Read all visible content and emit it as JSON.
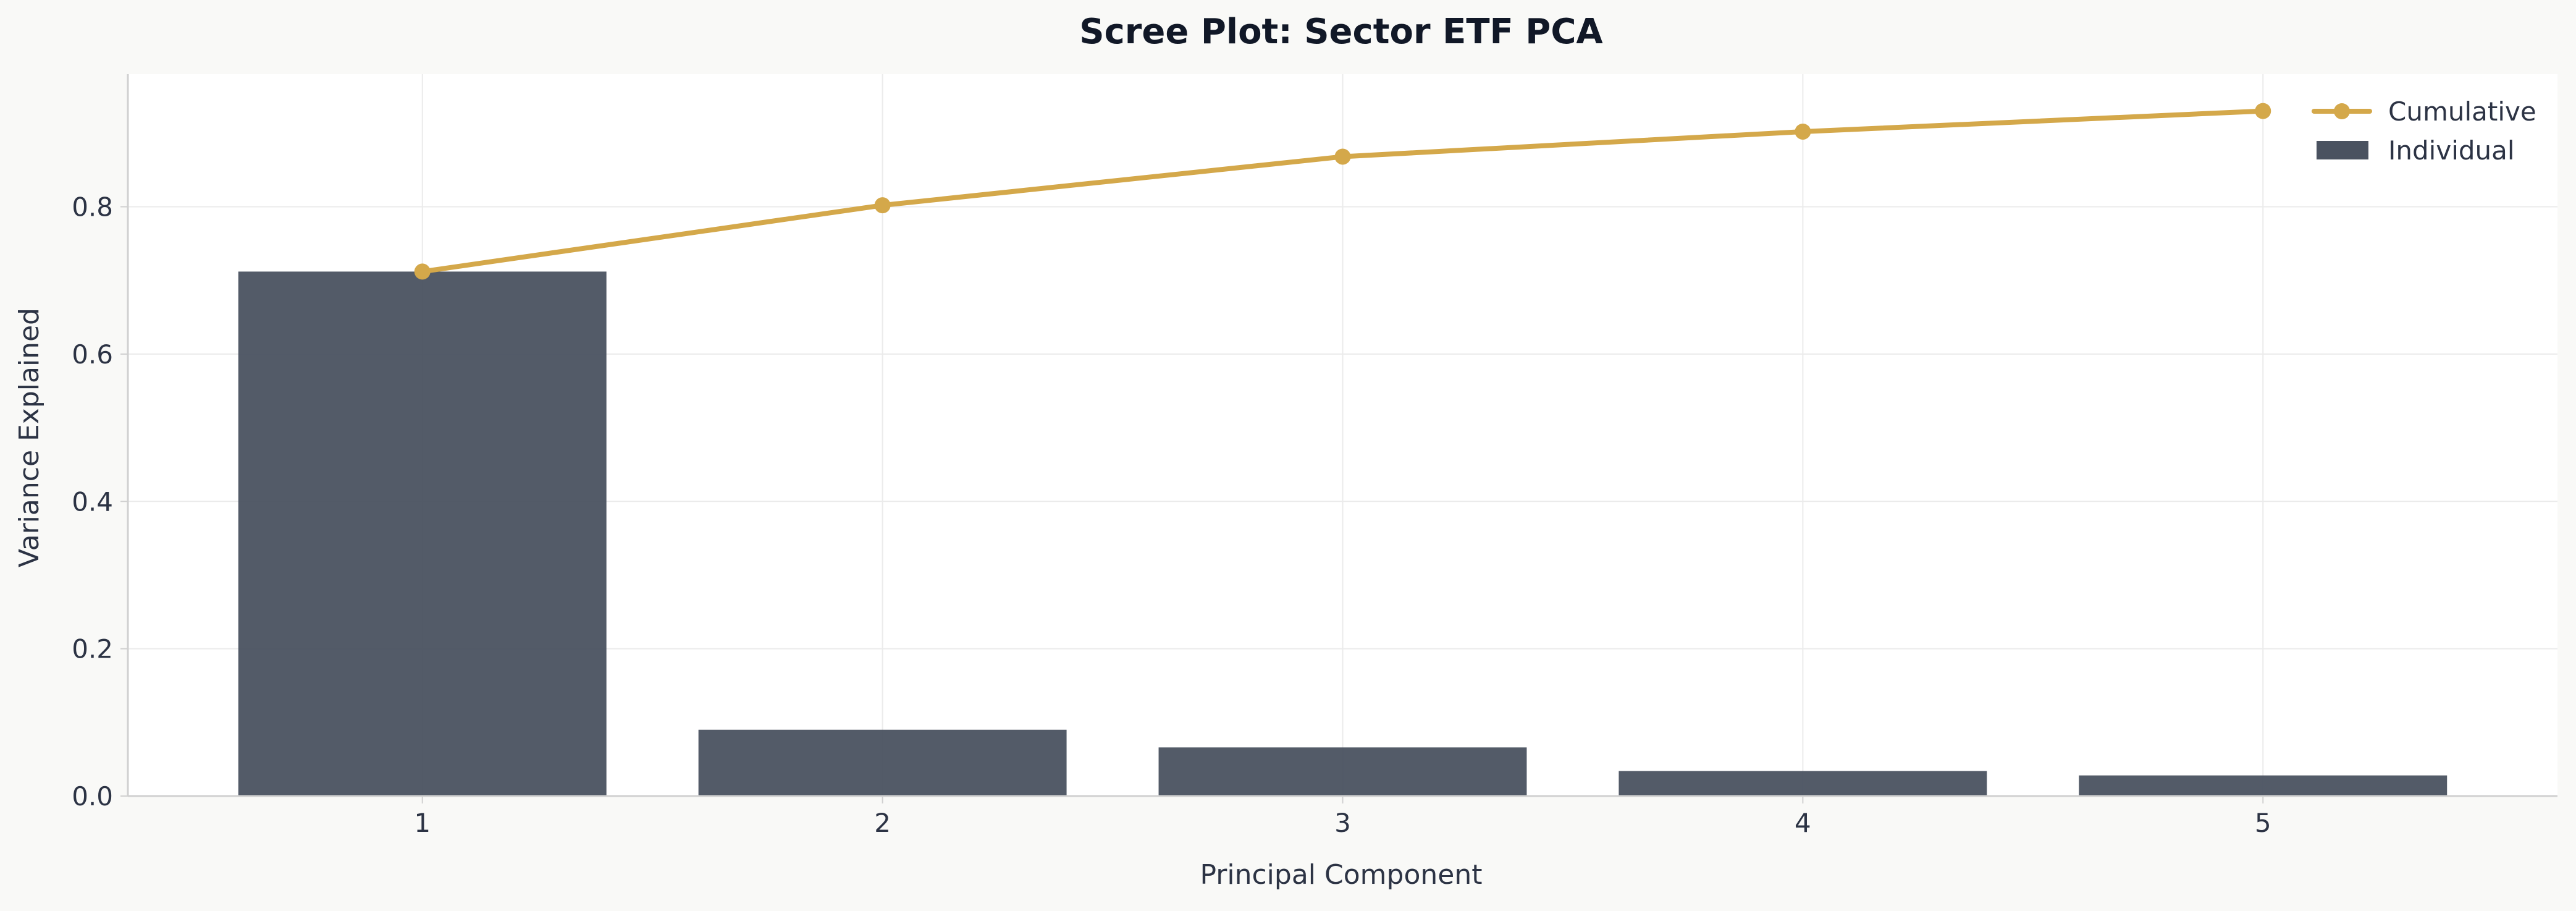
{
  "chart_data": {
    "type": "bar",
    "title": "Scree Plot: Sector ETF PCA",
    "xlabel": "Principal Component",
    "ylabel": "Variance Explained",
    "categories": [
      "1",
      "2",
      "3",
      "4",
      "5"
    ],
    "ylim": [
      0,
      0.98
    ],
    "yticks": [
      0.0,
      0.2,
      0.4,
      0.6,
      0.8
    ],
    "ytick_labels": [
      "0.0",
      "0.2",
      "0.4",
      "0.6",
      "0.8"
    ],
    "grid": true,
    "legend_position": "top-right",
    "series": [
      {
        "name": "Individual",
        "type": "bar",
        "color": "#4a5260",
        "values": [
          0.712,
          0.09,
          0.066,
          0.034,
          0.028
        ]
      },
      {
        "name": "Cumulative",
        "type": "line",
        "color": "#d4a84a",
        "values": [
          0.712,
          0.802,
          0.868,
          0.902,
          0.93
        ]
      }
    ]
  },
  "colors": {
    "background": "#f9f9f7",
    "plot_background": "#ffffff",
    "grid": "#ebebeb",
    "axis": "#d0d0d0",
    "text": "#2c3344",
    "title": "#111827"
  }
}
